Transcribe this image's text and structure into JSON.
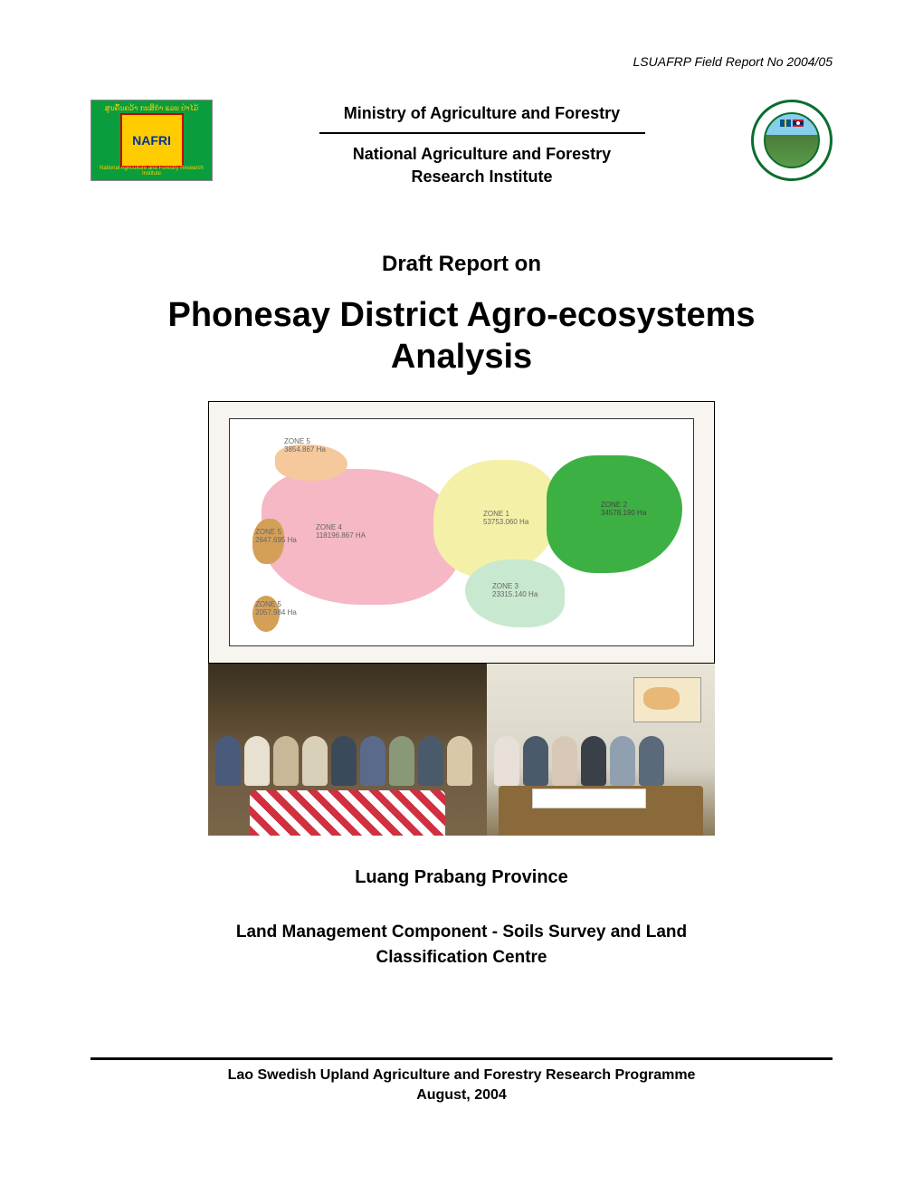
{
  "header_ref": "LSUAFRP Field Report No 2004/05",
  "ministry": "Ministry of Agriculture and Forestry",
  "institute_l1": "National Agriculture and Forestry",
  "institute_l2": "Research Institute",
  "nafri_logo_text": "NAFRI",
  "nafri_top": "ສູນຄົ້ນຄວ້າ ກະສິກຳ ແລະ ປ່າໄມ້",
  "nafri_bottom": "National Agriculture and Forestry Research Institute",
  "draft_title": "Draft Report on",
  "main_title_l1": "Phonesay District Agro-ecosystems",
  "main_title_l2": "Analysis",
  "province": "Luang Prabang Province",
  "component_l1": "Land Management Component - Soils Survey and Land",
  "component_l2": "Classification Centre",
  "programme": "Lao Swedish Upland Agriculture and Forestry Research Programme",
  "date": "August, 2004",
  "map": {
    "background_color": "#f8f4f0",
    "zones": {
      "zone1": {
        "label": "ZONE 1",
        "area": "53753.060 Ha",
        "color": "#f5f0a8"
      },
      "zone2": {
        "label": "ZONE 2",
        "area": "34578.190 Ha",
        "color": "#3cb043"
      },
      "zone3": {
        "label": "ZONE 3",
        "area": "23315.140 Ha",
        "color": "#c8e8d0"
      },
      "zone4": {
        "label": "ZONE 4",
        "area": "118196.867 HA",
        "color": "#f5b8c4"
      },
      "zone5": {
        "label": "ZONE 5",
        "area": "3854.867 Ha",
        "color": "#f5c99b"
      },
      "zone5b": {
        "label": "ZONE 5",
        "area": "2647.695 Ha",
        "color": "#d4a058"
      },
      "zone5c": {
        "label": "ZONE 5",
        "area": "2057.984 Ha",
        "color": "#d4a058"
      }
    }
  },
  "photos": {
    "left": {
      "description": "village consultation meeting under bamboo shelter",
      "people_colors": [
        "#4a5a7a",
        "#e8e0d0",
        "#c8b898",
        "#d8d0b8",
        "#3a4a5a",
        "#5a6a8a",
        "#889878",
        "#4a5a6a",
        "#d8c8a8"
      ],
      "tablecloth_colors": [
        "#d03040",
        "#ffffff"
      ]
    },
    "right": {
      "description": "office planning meeting with wall map",
      "people_colors": [
        "#e8e0d8",
        "#4a5a6a",
        "#d8c8b8",
        "#3a4048",
        "#90a0b0",
        "#5a6a7a"
      ],
      "table_color": "#8a6a3a",
      "wall_map_color": "#f5e8c8"
    }
  },
  "colors": {
    "text": "#000000",
    "nafri_bg": "#0a9d3e",
    "nafri_inner_bg": "#ffcc00",
    "nafri_inner_border": "#c00",
    "nafri_text": "#003399",
    "seal_border": "#0a6e2e"
  },
  "typography": {
    "header_ref_size": 14,
    "ministry_size": 18,
    "draft_title_size": 24,
    "main_title_size": 38,
    "province_size": 20,
    "component_size": 19,
    "footer_size": 16
  }
}
